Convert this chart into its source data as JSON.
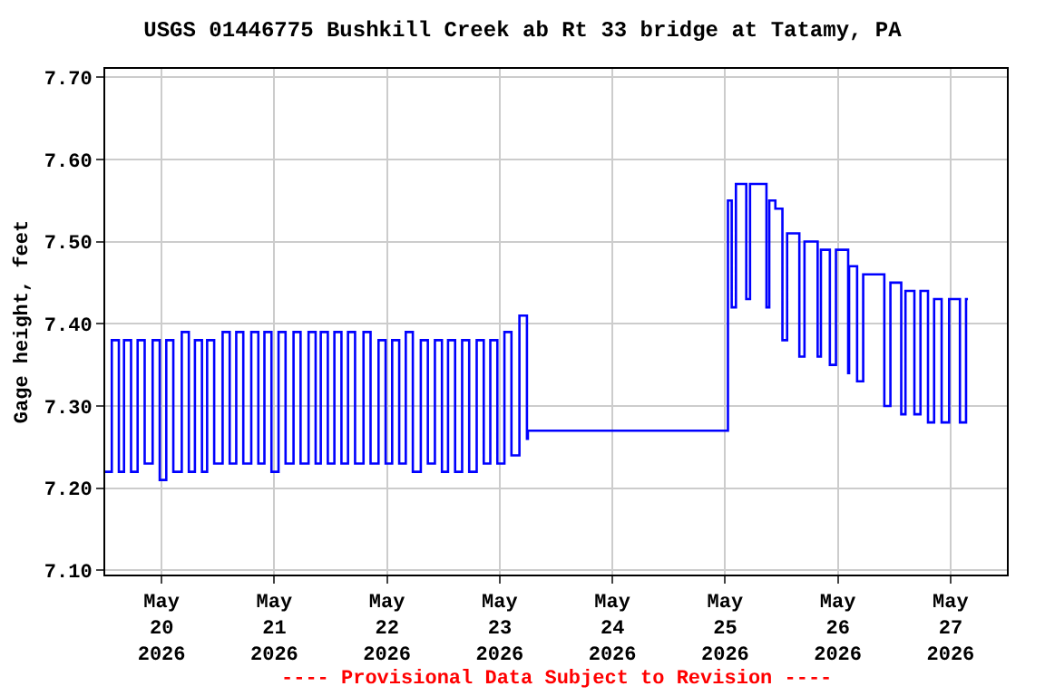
{
  "chart_data": {
    "type": "step",
    "title": "USGS 01446775 Bushkill Creek ab Rt 33 bridge at Tatamy, PA",
    "ylabel": "Gage height, feet",
    "annotations": [
      "---- Provisional Data Subject to Revision ----"
    ],
    "x": [
      "2026-05-19T12:00",
      "2026-05-19T13:24",
      "2026-05-19T14:54",
      "2026-05-19T16:00",
      "2026-05-19T17:30",
      "2026-05-19T18:54",
      "2026-05-19T20:24",
      "2026-05-19T22:06",
      "2026-05-19T23:36",
      "2026-05-20T01:00",
      "2026-05-20T02:30",
      "2026-05-20T04:18",
      "2026-05-20T05:48",
      "2026-05-20T07:06",
      "2026-05-20T08:36",
      "2026-05-20T09:42",
      "2026-05-20T11:12",
      "2026-05-20T13:00",
      "2026-05-20T14:30",
      "2026-05-20T15:54",
      "2026-05-20T17:24",
      "2026-05-20T19:06",
      "2026-05-20T20:36",
      "2026-05-20T21:54",
      "2026-05-20T23:24",
      "2026-05-21T00:54",
      "2026-05-21T02:24",
      "2026-05-21T04:06",
      "2026-05-21T05:36",
      "2026-05-21T07:18",
      "2026-05-21T08:48",
      "2026-05-21T09:54",
      "2026-05-21T11:24",
      "2026-05-21T12:48",
      "2026-05-21T14:18",
      "2026-05-21T15:42",
      "2026-05-21T17:12",
      "2026-05-21T19:00",
      "2026-05-21T20:30",
      "2026-05-21T22:12",
      "2026-05-21T23:42",
      "2026-05-22T01:06",
      "2026-05-22T02:36",
      "2026-05-22T04:00",
      "2026-05-22T05:30",
      "2026-05-22T07:12",
      "2026-05-22T08:42",
      "2026-05-22T10:12",
      "2026-05-22T11:42",
      "2026-05-22T13:00",
      "2026-05-22T14:30",
      "2026-05-22T16:00",
      "2026-05-22T17:30",
      "2026-05-22T19:06",
      "2026-05-22T20:36",
      "2026-05-22T22:00",
      "2026-05-22T23:30",
      "2026-05-23T01:00",
      "2026-05-23T02:30",
      "2026-05-23T04:12",
      "2026-05-23T05:48",
      "2026-05-23T06:00",
      "2026-05-25T00:36",
      "2026-05-25T01:24",
      "2026-05-25T02:18",
      "2026-05-25T04:30",
      "2026-05-25T05:18",
      "2026-05-25T08:48",
      "2026-05-25T09:24",
      "2026-05-25T10:42",
      "2026-05-25T12:12",
      "2026-05-25T13:12",
      "2026-05-25T15:48",
      "2026-05-25T16:54",
      "2026-05-25T19:42",
      "2026-05-25T20:24",
      "2026-05-25T22:18",
      "2026-05-25T23:36",
      "2026-05-26T02:12",
      "2026-05-26T02:24",
      "2026-05-26T04:06",
      "2026-05-26T05:24",
      "2026-05-26T09:54",
      "2026-05-26T11:12",
      "2026-05-26T13:30",
      "2026-05-26T14:24",
      "2026-05-26T16:18",
      "2026-05-26T17:36",
      "2026-05-26T19:12",
      "2026-05-26T20:30",
      "2026-05-26T22:06",
      "2026-05-26T23:42",
      "2026-05-27T02:00",
      "2026-05-27T03:18",
      "2026-05-27T03:42"
    ],
    "series": [
      {
        "color": "#0000ff",
        "values": [
          7.22,
          7.38,
          7.22,
          7.38,
          7.22,
          7.38,
          7.23,
          7.38,
          7.21,
          7.38,
          7.22,
          7.39,
          7.22,
          7.38,
          7.22,
          7.38,
          7.23,
          7.39,
          7.23,
          7.39,
          7.23,
          7.39,
          7.23,
          7.39,
          7.22,
          7.39,
          7.23,
          7.39,
          7.23,
          7.39,
          7.23,
          7.39,
          7.23,
          7.39,
          7.23,
          7.39,
          7.23,
          7.39,
          7.23,
          7.38,
          7.23,
          7.38,
          7.23,
          7.39,
          7.22,
          7.38,
          7.23,
          7.38,
          7.22,
          7.38,
          7.22,
          7.38,
          7.22,
          7.38,
          7.23,
          7.38,
          7.23,
          7.39,
          7.24,
          7.41,
          7.26,
          7.27,
          7.55,
          7.42,
          7.57,
          7.43,
          7.57,
          7.42,
          7.55,
          7.54,
          7.38,
          7.51,
          7.36,
          7.5,
          7.36,
          7.49,
          7.35,
          7.49,
          7.34,
          7.47,
          7.33,
          7.46,
          7.3,
          7.45,
          7.29,
          7.44,
          7.29,
          7.44,
          7.28,
          7.43,
          7.28,
          7.43,
          7.28,
          7.43,
          7.43
        ]
      }
    ],
    "xlim": [
      "2026-05-19T12:00",
      "2026-05-27T12:00"
    ],
    "xticks": [
      {
        "value": "2026-05-20",
        "label": "May\n20\n2026"
      },
      {
        "value": "2026-05-21",
        "label": "May\n21\n2026"
      },
      {
        "value": "2026-05-22",
        "label": "May\n22\n2026"
      },
      {
        "value": "2026-05-23",
        "label": "May\n23\n2026"
      },
      {
        "value": "2026-05-24",
        "label": "May\n24\n2026"
      },
      {
        "value": "2026-05-25",
        "label": "May\n25\n2026"
      },
      {
        "value": "2026-05-26",
        "label": "May\n26\n2026"
      },
      {
        "value": "2026-05-27",
        "label": "May\n27\n2026"
      }
    ],
    "ylim": [
      7.095,
      7.71
    ],
    "yticks": [
      {
        "value": 7.1,
        "label": "7.10"
      },
      {
        "value": 7.2,
        "label": "7.20"
      },
      {
        "value": 7.3,
        "label": "7.30"
      },
      {
        "value": 7.4,
        "label": "7.40"
      },
      {
        "value": 7.5,
        "label": "7.50"
      },
      {
        "value": 7.6,
        "label": "7.60"
      },
      {
        "value": 7.7,
        "label": "7.70"
      }
    ],
    "grid": true,
    "line_style": "solid",
    "marker": "none"
  }
}
